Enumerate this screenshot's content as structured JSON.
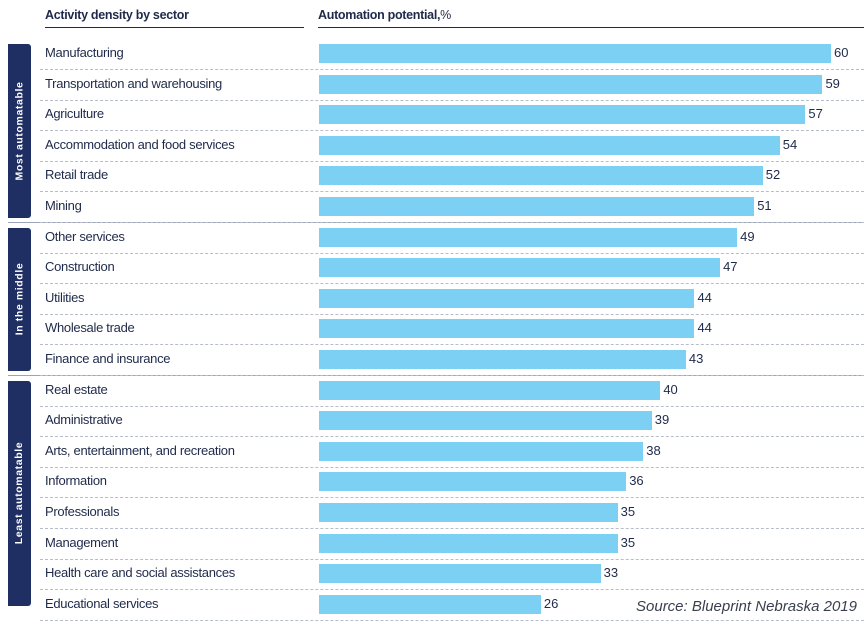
{
  "header": {
    "sector_label": "Activity density by sector",
    "potential_label": "Automation potential,",
    "potential_unit": "%"
  },
  "chart_data": {
    "type": "bar",
    "orientation": "horizontal",
    "xlim": [
      0,
      60
    ],
    "grid": false,
    "groups": [
      {
        "label": "Most automatable",
        "start": 0,
        "end": 5
      },
      {
        "label": "In the middle",
        "start": 6,
        "end": 10
      },
      {
        "label": "Least automatable",
        "start": 11,
        "end": 18
      }
    ],
    "categories": [
      "Manufacturing",
      "Transportation and warehousing",
      "Agriculture",
      "Accommodation and food services",
      "Retail trade",
      "Mining",
      "Other services",
      "Construction",
      "Utilities",
      "Wholesale trade",
      "Finance and insurance",
      "Real estate",
      "Administrative",
      "Arts, entertainment, and recreation",
      "Information",
      "Professionals",
      "Management",
      "Health care and social assistances",
      "Educational services"
    ],
    "values": [
      60,
      59,
      57,
      54,
      52,
      51,
      49,
      47,
      44,
      44,
      43,
      40,
      39,
      38,
      36,
      35,
      35,
      33,
      26
    ],
    "bar_color": "#7cd0f4",
    "group_color": "#1f2f63"
  },
  "source": "Source: Blueprint Nebraska 2019"
}
